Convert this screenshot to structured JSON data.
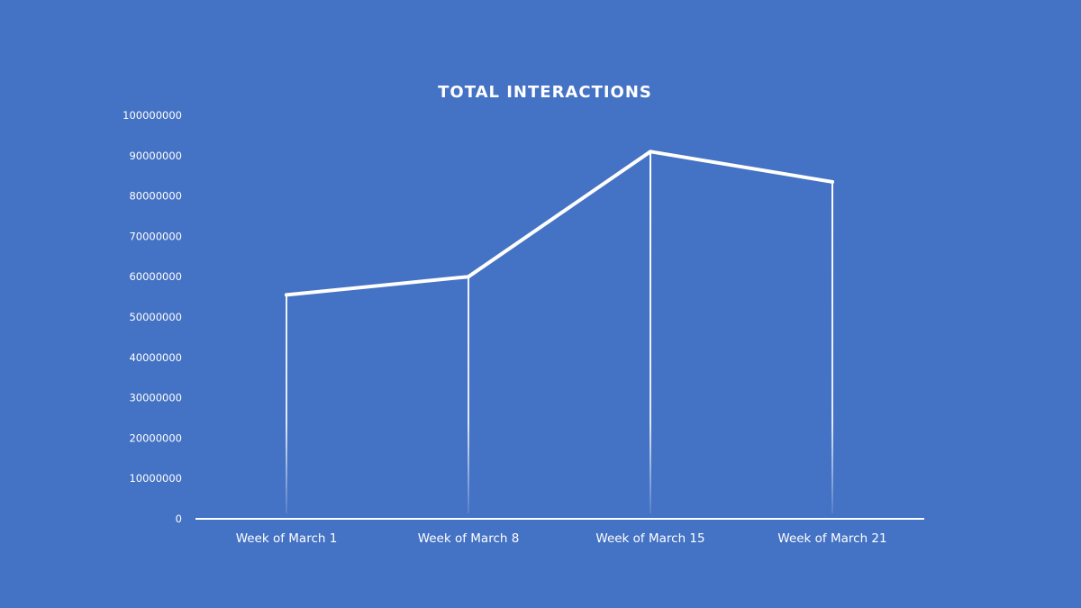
{
  "background_color": "#4472c4",
  "line_color": "#ffffff",
  "chart_data": {
    "type": "line",
    "title": "TOTAL INTERACTIONS",
    "xlabel": "",
    "ylabel": "",
    "categories": [
      "Week of March 1",
      "Week of March 8",
      "Week of March 15",
      "Week of March 21"
    ],
    "series": [
      {
        "values": [
          55500000,
          60000000,
          91000000,
          83500000
        ]
      }
    ],
    "ylim": [
      0,
      100000000
    ],
    "yticks": [
      "0",
      "10000000",
      "20000000",
      "30000000",
      "40000000",
      "50000000",
      "60000000",
      "70000000",
      "80000000",
      "90000000",
      "100000000"
    ],
    "grid": false,
    "legend": "none",
    "drop_lines": true
  }
}
